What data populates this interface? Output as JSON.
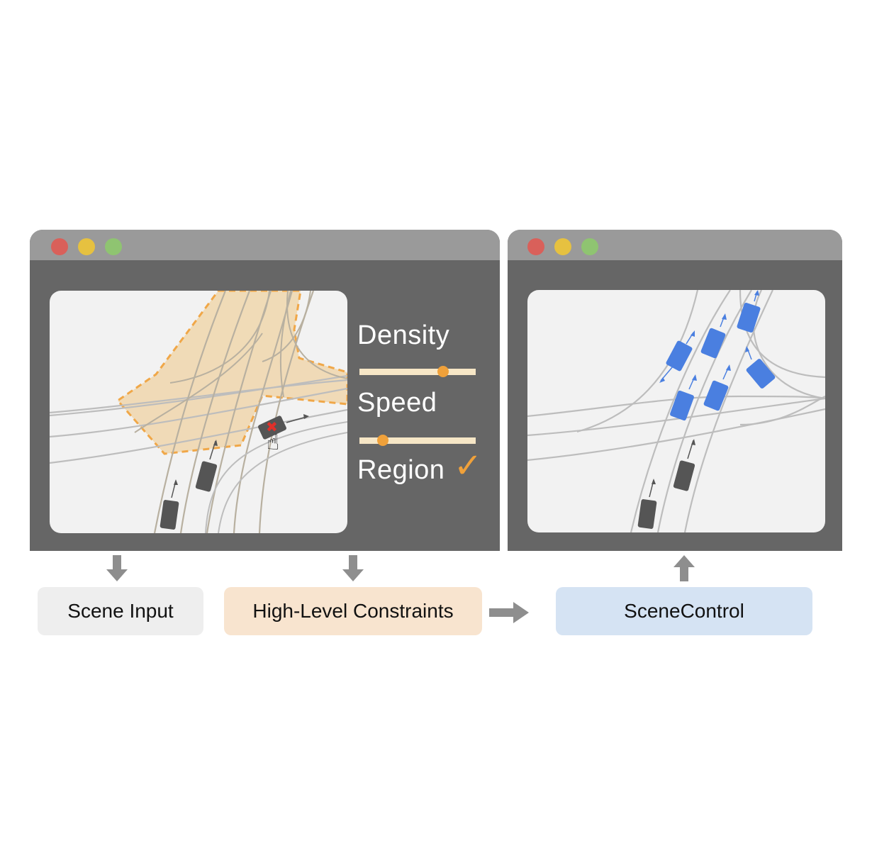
{
  "controls": {
    "density_label": "Density",
    "density_level": 0.72,
    "speed_label": "Speed",
    "speed_level": 0.2,
    "region_label": "Region",
    "region_checked": true
  },
  "labels": {
    "scene_input": "Scene Input",
    "constraints": "High-Level Constraints",
    "scenecontrol": "SceneControl"
  },
  "colors": {
    "window_body": "#666666",
    "titlebar": "#9a9a9a",
    "dot_red": "#d9605a",
    "dot_yellow": "#e6c140",
    "dot_green": "#8fc471",
    "accent_orange": "#f0a13a",
    "region_fill": "#f0d9b2",
    "vehicle_dark": "#555555",
    "vehicle_blue": "#4a7fe0",
    "scene_input_box": "#eeeeee",
    "constraints_box": "#f8e4cf",
    "scenecontrol_box": "#d5e3f3",
    "flow_arrow": "#8e8e8e"
  },
  "icons": {
    "check": "checkmark-icon",
    "cursor": "hand-pointer-icon",
    "remove": "x-mark-icon"
  }
}
